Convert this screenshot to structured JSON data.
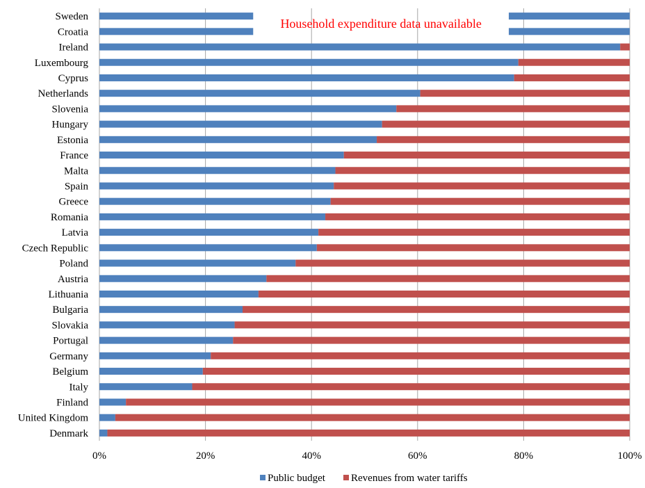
{
  "chart_data": {
    "type": "bar",
    "orientation": "horizontal",
    "stacked": true,
    "percent_stacked": true,
    "categories": [
      "Sweden",
      "Croatia",
      "Ireland",
      "Luxembourg",
      "Cyprus",
      "Netherlands",
      "Slovenia",
      "Hungary",
      "Estonia",
      "France",
      "Malta",
      "Spain",
      "Greece",
      "Romania",
      "Latvia",
      "Czech Republic",
      "Poland",
      "Austria",
      "Lithuania",
      "Bulgaria",
      "Slovakia",
      "Portugal",
      "Germany",
      "Belgium",
      "Italy",
      "Finland",
      "United Kingdom",
      "Denmark"
    ],
    "series": [
      {
        "name": "Public budget",
        "color": "#4F81BD",
        "values": [
          29,
          29,
          98.2,
          79,
          78.2,
          60.5,
          56,
          53.3,
          52.3,
          46.1,
          44.5,
          44.2,
          43.6,
          42.6,
          41.3,
          41,
          37,
          31.5,
          30,
          27,
          25.5,
          25.2,
          21,
          19.5,
          17.5,
          5,
          3,
          1.5
        ]
      },
      {
        "name": "Revenues from water tariffs",
        "color": "#C0504D",
        "values": [
          0,
          0,
          1.8,
          21,
          21.8,
          39.5,
          44,
          46.7,
          47.7,
          53.9,
          55.5,
          55.8,
          56.4,
          57.4,
          58.7,
          59,
          63,
          68.5,
          70,
          73,
          74.5,
          74.8,
          79,
          80.5,
          82.5,
          95,
          97,
          98.5
        ]
      }
    ],
    "household_expenditure_unavailable": [
      "Sweden",
      "Croatia"
    ],
    "unavailable_right_segment_start": 77.2,
    "annotation": {
      "text": "Household expenditure data unavailable",
      "color": "#FF0000"
    },
    "xlim": [
      0,
      100
    ],
    "x_ticks": [
      "0%",
      "20%",
      "40%",
      "60%",
      "80%",
      "100%"
    ],
    "x_tick_values": [
      0,
      20,
      40,
      60,
      80,
      100
    ],
    "xlabel": "",
    "ylabel": "",
    "grid": "vertical",
    "grid_color": "#A6A6A6",
    "legend_position": "bottom"
  }
}
